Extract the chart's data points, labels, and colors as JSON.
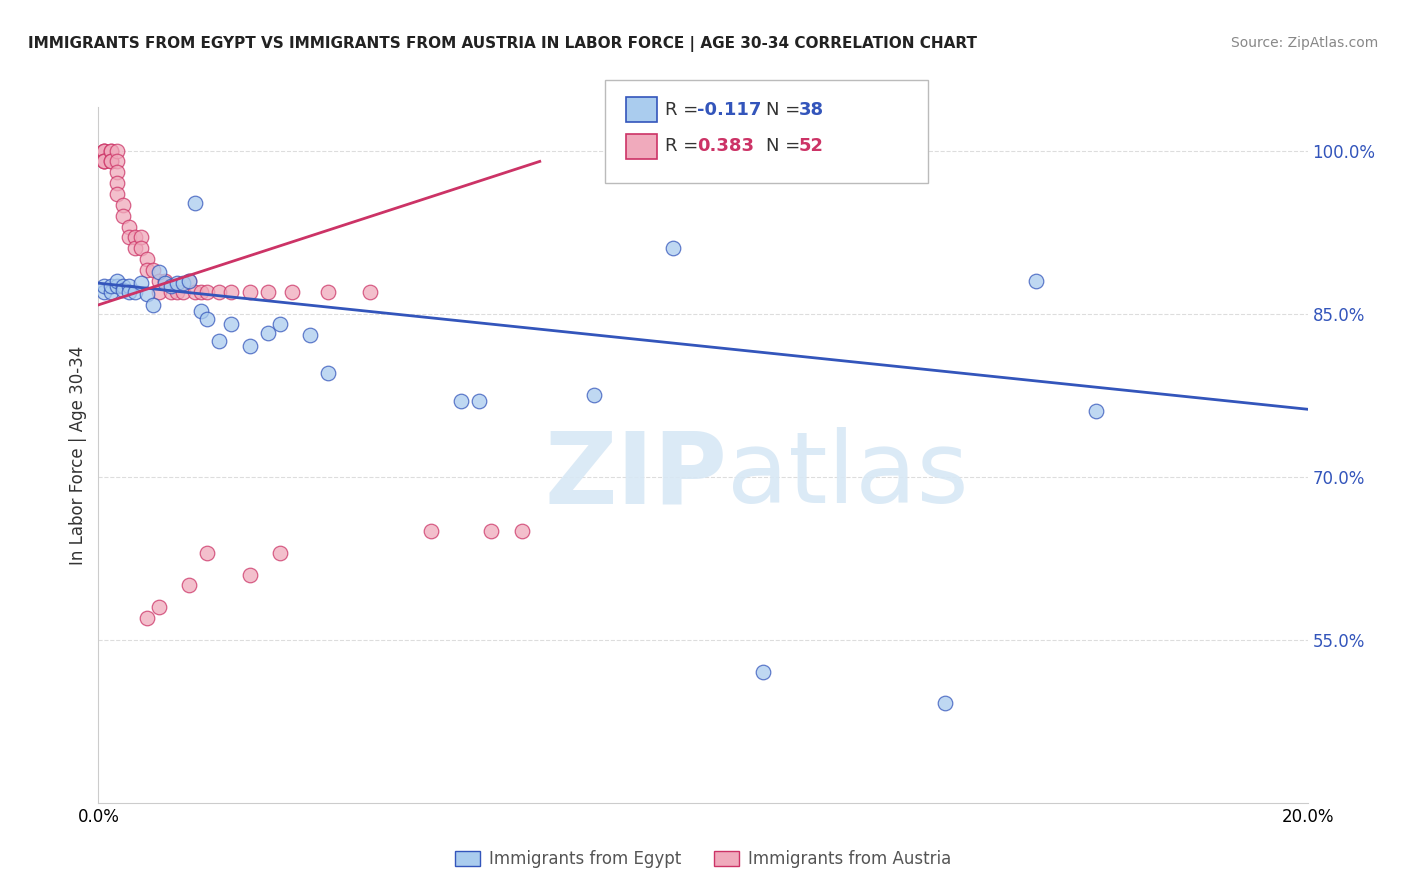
{
  "title": "IMMIGRANTS FROM EGYPT VS IMMIGRANTS FROM AUSTRIA IN LABOR FORCE | AGE 30-34 CORRELATION CHART",
  "source": "Source: ZipAtlas.com",
  "ylabel": "In Labor Force | Age 30-34",
  "y_ticks": [
    0.55,
    0.7,
    0.85,
    1.0
  ],
  "y_tick_labels": [
    "55.0%",
    "70.0%",
    "85.0%",
    "100.0%"
  ],
  "x_lim": [
    0.0,
    0.2
  ],
  "y_lim": [
    0.4,
    1.04
  ],
  "legend_r_egypt": "-0.117",
  "legend_n_egypt": "38",
  "legend_r_austria": "0.383",
  "legend_n_austria": "52",
  "egypt_color": "#aaccee",
  "austria_color": "#f0aabc",
  "egypt_line_color": "#3355bb",
  "austria_line_color": "#cc3366",
  "egypt_x": [
    0.001,
    0.001,
    0.002,
    0.002,
    0.003,
    0.003,
    0.004,
    0.004,
    0.005,
    0.005,
    0.006,
    0.007,
    0.008,
    0.009,
    0.01,
    0.011,
    0.012,
    0.013,
    0.014,
    0.015,
    0.016,
    0.017,
    0.018,
    0.02,
    0.022,
    0.025,
    0.028,
    0.03,
    0.035,
    0.038,
    0.06,
    0.063,
    0.082,
    0.095,
    0.11,
    0.14,
    0.155,
    0.165
  ],
  "egypt_y": [
    0.87,
    0.875,
    0.87,
    0.875,
    0.875,
    0.88,
    0.875,
    0.872,
    0.875,
    0.87,
    0.87,
    0.878,
    0.868,
    0.858,
    0.888,
    0.878,
    0.875,
    0.878,
    0.878,
    0.88,
    0.952,
    0.852,
    0.845,
    0.825,
    0.84,
    0.82,
    0.832,
    0.84,
    0.83,
    0.795,
    0.77,
    0.77,
    0.775,
    0.91,
    0.52,
    0.492,
    0.88,
    0.76
  ],
  "austria_x": [
    0.001,
    0.001,
    0.001,
    0.001,
    0.001,
    0.001,
    0.002,
    0.002,
    0.002,
    0.002,
    0.003,
    0.003,
    0.003,
    0.003,
    0.003,
    0.004,
    0.004,
    0.005,
    0.005,
    0.006,
    0.006,
    0.007,
    0.007,
    0.008,
    0.008,
    0.009,
    0.01,
    0.01,
    0.011,
    0.012,
    0.013,
    0.014,
    0.015,
    0.016,
    0.017,
    0.018,
    0.02,
    0.022,
    0.025,
    0.028,
    0.032,
    0.038,
    0.045,
    0.055,
    0.065,
    0.07,
    0.03,
    0.025,
    0.018,
    0.015,
    0.01,
    0.008
  ],
  "austria_y": [
    1.0,
    1.0,
    1.0,
    0.99,
    0.99,
    0.99,
    1.0,
    1.0,
    0.99,
    0.99,
    1.0,
    0.99,
    0.98,
    0.97,
    0.96,
    0.95,
    0.94,
    0.93,
    0.92,
    0.92,
    0.91,
    0.92,
    0.91,
    0.9,
    0.89,
    0.89,
    0.88,
    0.87,
    0.88,
    0.87,
    0.87,
    0.87,
    0.88,
    0.87,
    0.87,
    0.87,
    0.87,
    0.87,
    0.87,
    0.87,
    0.87,
    0.87,
    0.87,
    0.65,
    0.65,
    0.65,
    0.63,
    0.61,
    0.63,
    0.6,
    0.58,
    0.57
  ],
  "watermark_zip": "ZIP",
  "watermark_atlas": "atlas",
  "background_color": "#ffffff",
  "grid_color": "#dddddd",
  "egypt_trend_x0": 0.0,
  "egypt_trend_x1": 0.2,
  "egypt_trend_y0": 0.878,
  "egypt_trend_y1": 0.762,
  "austria_trend_x0": 0.0,
  "austria_trend_x1": 0.073,
  "austria_trend_y0": 0.858,
  "austria_trend_y1": 0.99
}
